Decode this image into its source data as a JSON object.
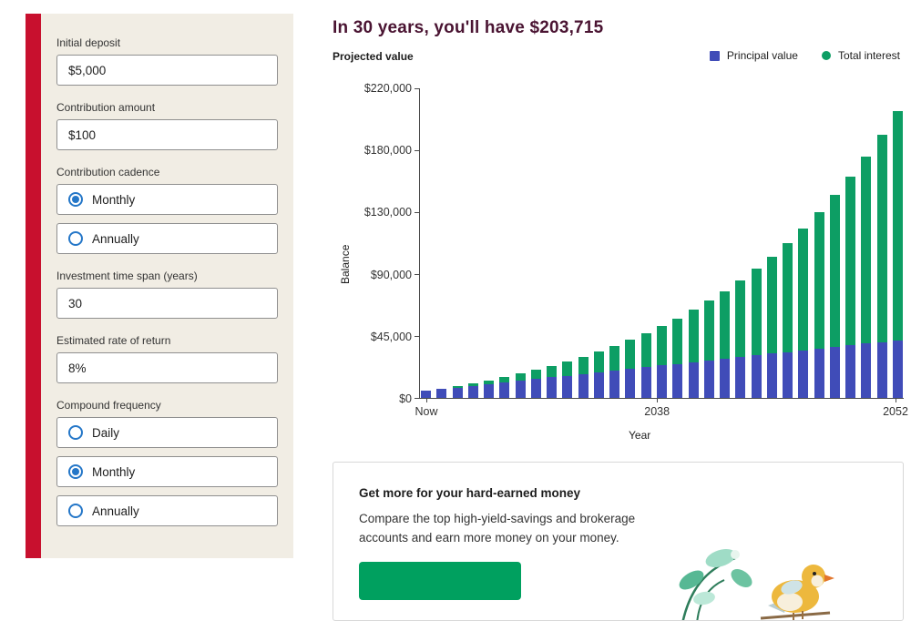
{
  "sidebar": {
    "fields": [
      {
        "label": "Initial deposit",
        "value": "$5,000"
      },
      {
        "label": "Contribution amount",
        "value": "$100"
      },
      {
        "label": "Contribution cadence",
        "options": [
          {
            "label": "Monthly",
            "selected": true
          },
          {
            "label": "Annually",
            "selected": false
          }
        ]
      },
      {
        "label": "Investment time span (years)",
        "value": "30"
      },
      {
        "label": "Estimated rate of return",
        "value": "8%"
      },
      {
        "label": "Compound frequency",
        "options": [
          {
            "label": "Daily",
            "selected": false
          },
          {
            "label": "Monthly",
            "selected": true
          },
          {
            "label": "Annually",
            "selected": false
          }
        ]
      }
    ],
    "accent_color": "#c8102e",
    "background_color": "#f1ede4"
  },
  "main": {
    "headline": "In 30 years, you'll have $203,715",
    "chart_label": "Projected value",
    "legend": [
      {
        "label": "Principal value",
        "color": "#404cb8",
        "shape": "square",
        "icon": "principal-swatch-icon"
      },
      {
        "label": "Total interest",
        "color": "#0d9e64",
        "shape": "circle",
        "icon": "interest-swatch-icon"
      }
    ]
  },
  "chart_data": {
    "type": "bar",
    "stacked": true,
    "title": "Projected value",
    "xlabel": "Year",
    "ylabel": "Balance",
    "ylim": [
      0,
      220000
    ],
    "num_bars": 31,
    "ytick_labels": [
      "$0",
      "$45,000",
      "$90,000",
      "$130,000",
      "$180,000",
      "$220,000"
    ],
    "xtick_labels": [
      "Now",
      "2038",
      "2052"
    ],
    "legend_position": "top-right",
    "grid": false,
    "series": [
      {
        "name": "Principal value",
        "color": "#404cb8",
        "values": [
          5000,
          6200,
          7400,
          8600,
          9800,
          11000,
          12200,
          13400,
          14600,
          15800,
          17000,
          18200,
          19400,
          20600,
          21800,
          23000,
          24200,
          25400,
          26600,
          27800,
          29000,
          30200,
          31400,
          32600,
          33800,
          35000,
          36200,
          37400,
          38600,
          39800,
          41000
        ]
      },
      {
        "name": "Total interest",
        "color": "#0d9e64",
        "values": [
          0,
          460,
          1058,
          1805,
          2713,
          3797,
          5070,
          6548,
          8249,
          10191,
          12393,
          14877,
          17668,
          20789,
          24270,
          28138,
          32428,
          37173,
          42412,
          48185,
          54536,
          61515,
          69172,
          77565,
          86754,
          96805,
          107790,
          119786,
          132878,
          147156,
          162715
        ]
      }
    ]
  },
  "promo": {
    "title": "Get more for your hard-earned money",
    "body": "Compare the top high-yield-savings and brokerage accounts and earn more money on your money.",
    "button_color": "#00a05f"
  }
}
